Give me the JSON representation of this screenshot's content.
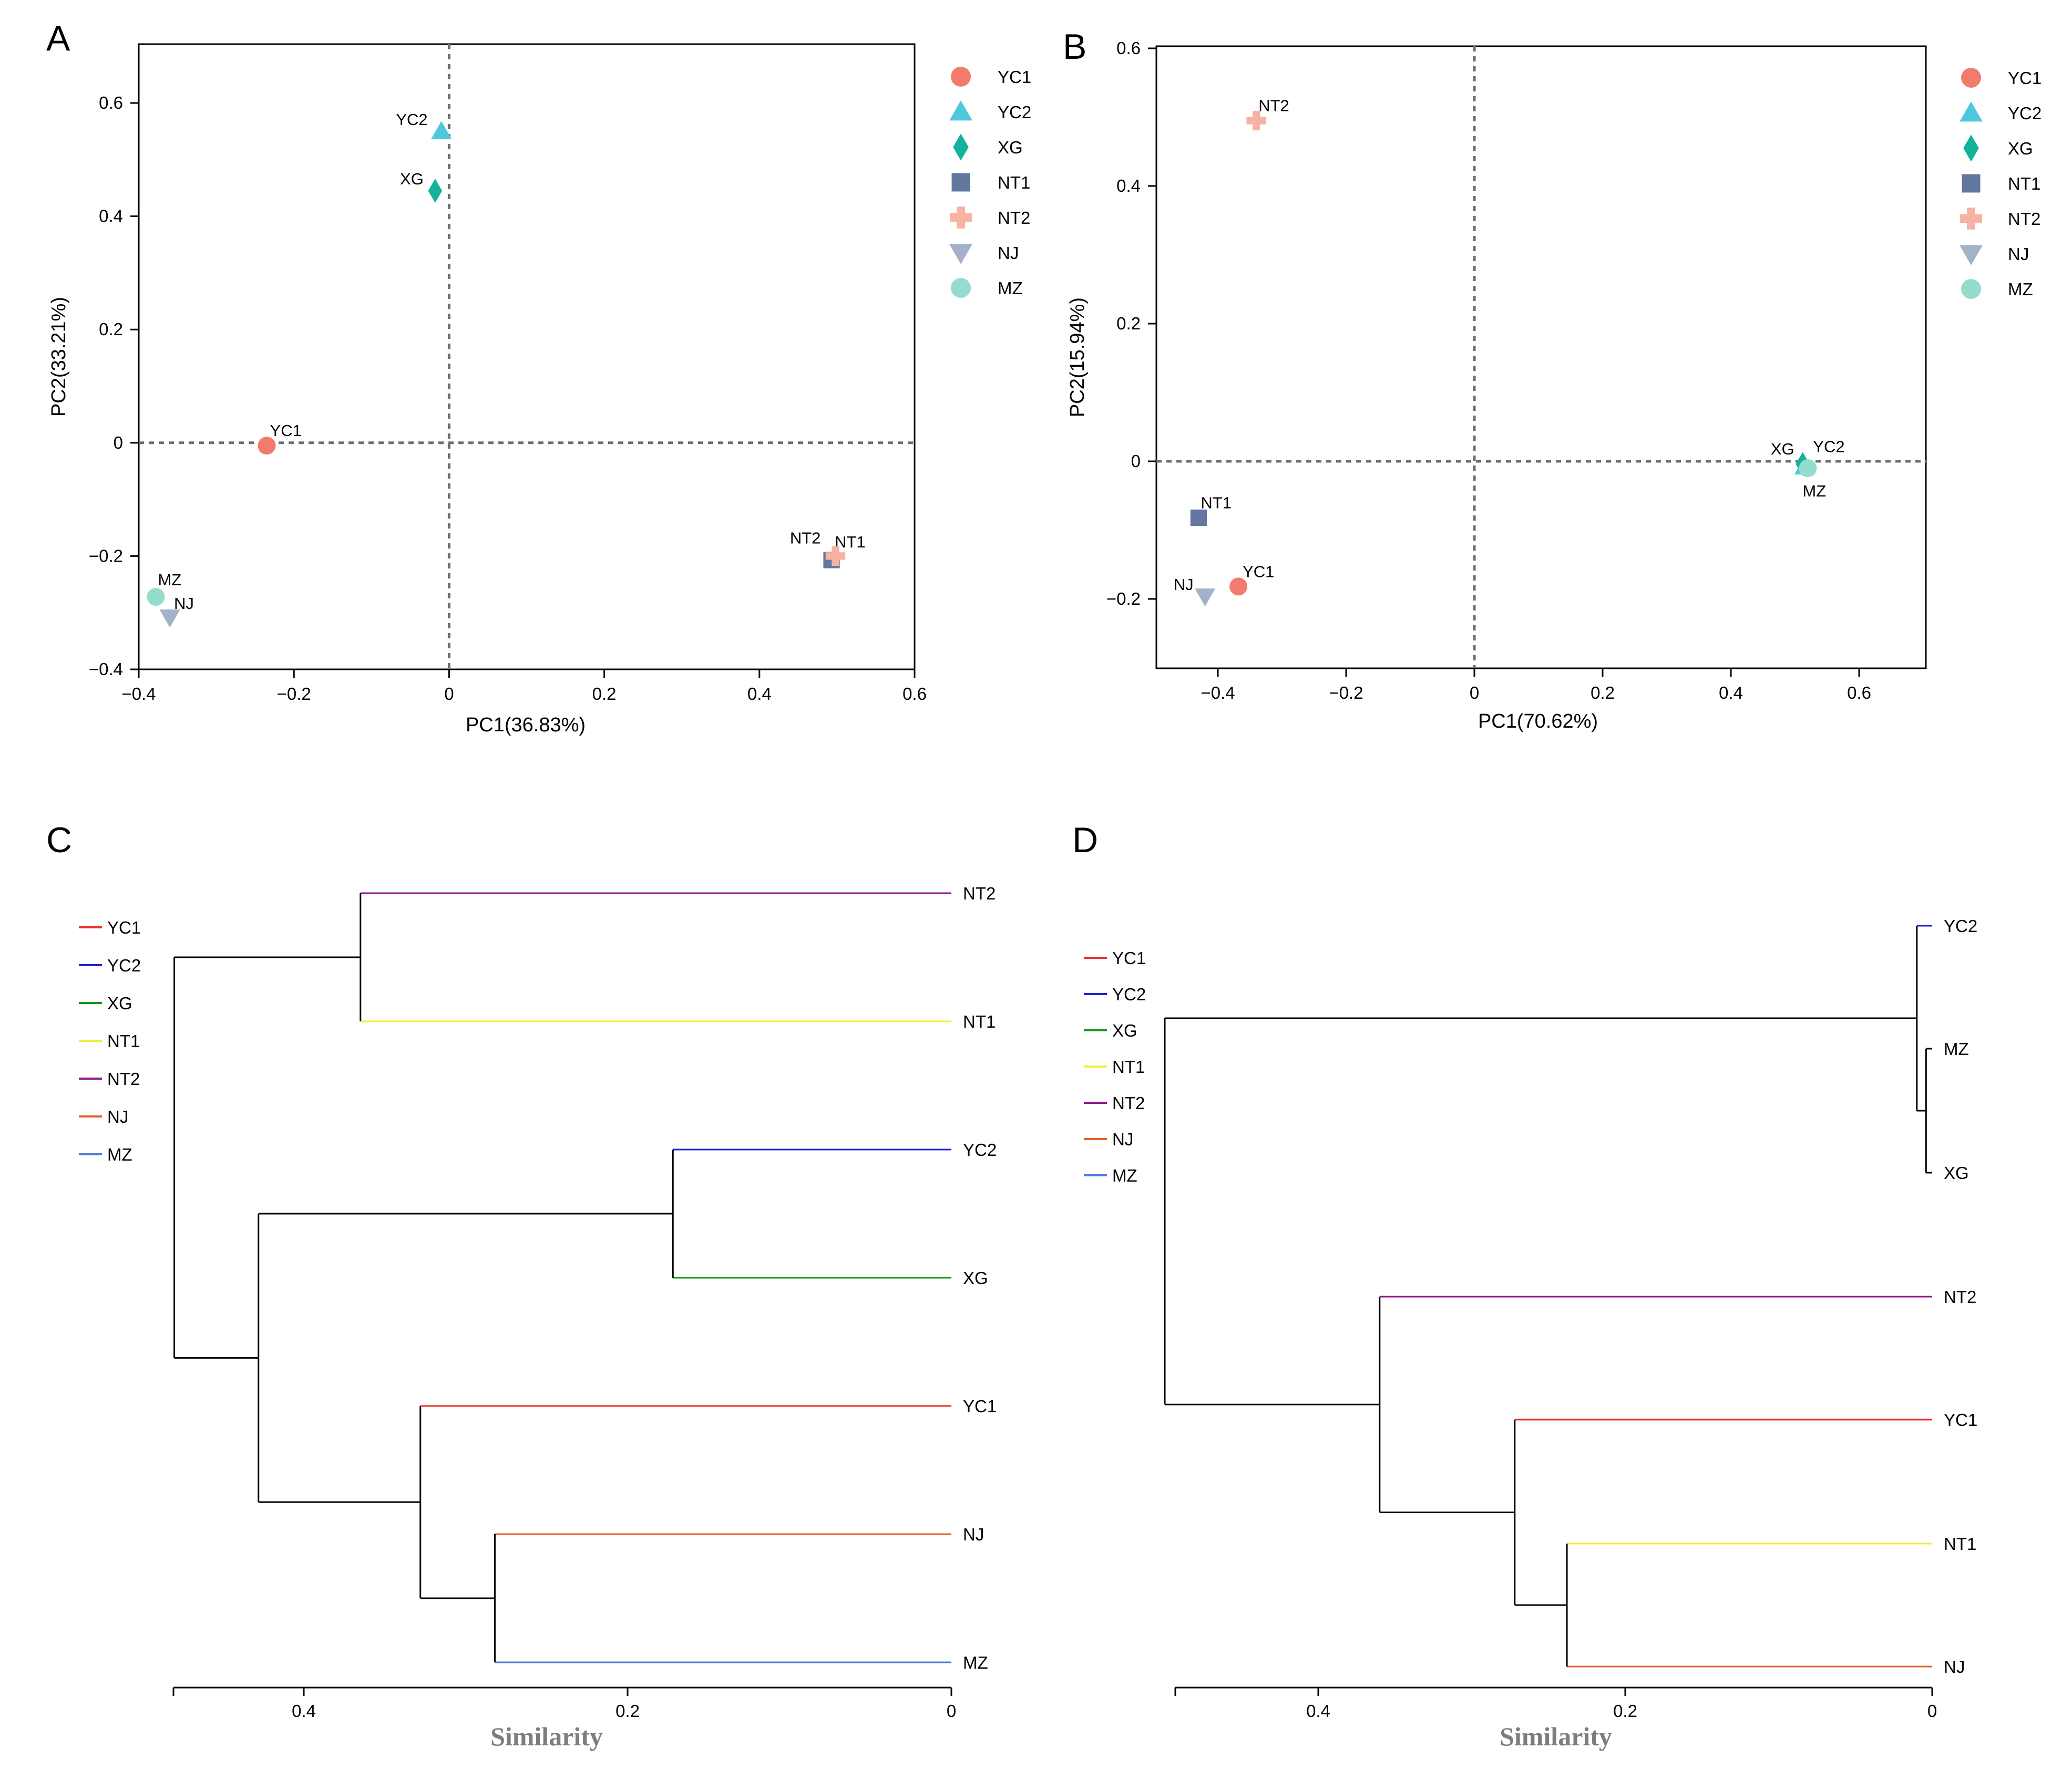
{
  "colors": {
    "YC1": "#f27b6e",
    "YC2": "#4fc8db",
    "XG": "#13b39b",
    "NT1": "#6378a0",
    "NT2": "#f7b2a1",
    "NJ": "#a3b1c9",
    "MZ": "#94dccd",
    "axis": "#000000",
    "refline": "#6e6e6e",
    "tree_black": "#000000",
    "similarity_label": "#7d7d7d"
  },
  "icons": {
    "YC1": "circle",
    "YC2": "triangle-up",
    "XG": "diamond",
    "NT1": "square",
    "NT2": "plus",
    "NJ": "triangle-down",
    "MZ": "circle"
  },
  "chart_data": [
    {
      "panel": "A",
      "type": "scatter",
      "xlabel": "PC1(36.83%)",
      "ylabel": "PC2(33.21%)",
      "xlim": [
        -0.4,
        0.6
      ],
      "ylim": [
        -0.4,
        0.7
      ],
      "xticks": [
        -0.4,
        -0.2,
        0,
        0.2,
        0.4,
        0.6
      ],
      "xtick_labels": [
        "−0.4",
        "−0.2",
        "0",
        "0.2",
        "0.4",
        "0.6"
      ],
      "yticks": [
        -0.4,
        -0.2,
        0,
        0.2,
        0.4,
        0.6
      ],
      "ytick_labels": [
        "−0.4",
        "−0.2",
        "0",
        "0.2",
        "0.4",
        "0.6"
      ],
      "reference_lines": {
        "x": 0,
        "y": 0
      },
      "legend_position": "right",
      "legend": [
        "YC1",
        "YC2",
        "XG",
        "NT1",
        "NT2",
        "NJ",
        "MZ"
      ],
      "points": [
        {
          "label": "YC1",
          "x": -0.235,
          "y": -0.005
        },
        {
          "label": "YC2",
          "x": -0.01,
          "y": 0.55
        },
        {
          "label": "XG",
          "x": -0.018,
          "y": 0.445
        },
        {
          "label": "NT1",
          "x": 0.493,
          "y": -0.207
        },
        {
          "label": "NT2",
          "x": 0.498,
          "y": -0.2
        },
        {
          "label": "NJ",
          "x": -0.36,
          "y": -0.308
        },
        {
          "label": "MZ",
          "x": -0.378,
          "y": -0.272
        }
      ]
    },
    {
      "panel": "B",
      "type": "scatter",
      "xlabel": "PC1(70.62%)",
      "ylabel": "PC2(15.94%)",
      "xlim": [
        -0.5,
        0.7
      ],
      "ylim": [
        -0.3,
        0.6
      ],
      "xticks": [
        -0.4,
        -0.2,
        0,
        0.2,
        0.4,
        0.6
      ],
      "xtick_labels": [
        "−0.4",
        "−0.2",
        "0",
        "0.2",
        "0.4",
        "0.6"
      ],
      "yticks": [
        -0.2,
        0,
        0.2,
        0.4,
        0.6
      ],
      "ytick_labels": [
        "−0.2",
        "0",
        "0.2",
        "0.4",
        "0.6"
      ],
      "reference_lines": {
        "x": 0,
        "y": 0
      },
      "legend_position": "right",
      "legend": [
        "YC1",
        "YC2",
        "XG",
        "NT1",
        "NT2",
        "NJ",
        "MZ"
      ],
      "points": [
        {
          "label": "YC1",
          "x": -0.368,
          "y": -0.182
        },
        {
          "label": "YC2",
          "x": 0.515,
          "y": -0.008
        },
        {
          "label": "XG",
          "x": 0.512,
          "y": -0.004
        },
        {
          "label": "NT1",
          "x": -0.43,
          "y": -0.082
        },
        {
          "label": "NT2",
          "x": -0.34,
          "y": 0.495
        },
        {
          "label": "NJ",
          "x": -0.42,
          "y": -0.196
        },
        {
          "label": "MZ",
          "x": 0.52,
          "y": -0.01
        }
      ]
    },
    {
      "panel": "C",
      "type": "dendrogram",
      "xlabel": "Similarity",
      "xlim": [
        0.48,
        0
      ],
      "xticks": [
        0.4,
        0.2,
        0
      ],
      "xtick_labels": [
        "0.4",
        "0.2",
        "0"
      ],
      "legend_position": "top-left",
      "legend": [
        {
          "label": "YC1",
          "color": "#e8302a"
        },
        {
          "label": "YC2",
          "color": "#2323d3"
        },
        {
          "label": "XG",
          "color": "#16951c"
        },
        {
          "label": "NT1",
          "color": "#f0ef3e"
        },
        {
          "label": "NT2",
          "color": "#8d1889"
        },
        {
          "label": "NJ",
          "color": "#e2612d"
        },
        {
          "label": "MZ",
          "color": "#4a7bd9"
        }
      ],
      "leaves": [
        {
          "label": "NT2",
          "color": "#8d1889",
          "join": 0.365
        },
        {
          "label": "NT1",
          "color": "#f0ef3e",
          "join": 0.365
        },
        {
          "label": "YC2",
          "color": "#2323d3",
          "join": 0.172
        },
        {
          "label": "XG",
          "color": "#16951c",
          "join": 0.172
        },
        {
          "label": "YC1",
          "color": "#e8302a",
          "join": 0.328
        },
        {
          "label": "NJ",
          "color": "#e2612d",
          "join": 0.282
        },
        {
          "label": "MZ",
          "color": "#4a7bd9",
          "join": 0.282
        }
      ],
      "merges": [
        {
          "a": 5,
          "b": 6,
          "h": 0.282
        },
        {
          "a": 4,
          "b": 7,
          "h": 0.328
        },
        {
          "a": 2,
          "b": 3,
          "h": 0.172
        },
        {
          "a": 9,
          "b": 8,
          "h": 0.428
        },
        {
          "a": 0,
          "b": 1,
          "h": 0.365
        },
        {
          "a": 11,
          "b": 10,
          "h": 0.48
        }
      ]
    },
    {
      "panel": "D",
      "type": "dendrogram",
      "xlabel": "Similarity",
      "xlim": [
        0.5,
        0
      ],
      "xticks": [
        0.4,
        0.2,
        0
      ],
      "xtick_labels": [
        "0.4",
        "0.2",
        "0"
      ],
      "legend_position": "top-left",
      "legend": [
        {
          "label": "YC1",
          "color": "#e8302a"
        },
        {
          "label": "YC2",
          "color": "#2323d3"
        },
        {
          "label": "XG",
          "color": "#16951c"
        },
        {
          "label": "NT1",
          "color": "#f0ef3e"
        },
        {
          "label": "NT2",
          "color": "#8d1889"
        },
        {
          "label": "NJ",
          "color": "#e2612d"
        },
        {
          "label": "MZ",
          "color": "#4a7bd9"
        }
      ],
      "leaves": [
        {
          "label": "YC2",
          "color": "#2323d3",
          "join": 0.01
        },
        {
          "label": "MZ",
          "color": "#000000",
          "join": 0.004
        },
        {
          "label": "XG",
          "color": "#000000",
          "join": 0.004
        },
        {
          "label": "NT2",
          "color": "#8d1889",
          "join": 0.36
        },
        {
          "label": "YC1",
          "color": "#e8302a",
          "join": 0.272
        },
        {
          "label": "NT1",
          "color": "#f0ef3e",
          "join": 0.238
        },
        {
          "label": "NJ",
          "color": "#e2612d",
          "join": 0.238
        }
      ],
      "merges": [
        {
          "a": 1,
          "b": 2,
          "h": 0.004
        },
        {
          "a": 0,
          "b": 7,
          "h": 0.01
        },
        {
          "a": 5,
          "b": 6,
          "h": 0.238
        },
        {
          "a": 4,
          "b": 9,
          "h": 0.272
        },
        {
          "a": 3,
          "b": 10,
          "h": 0.36
        },
        {
          "a": 8,
          "b": 11,
          "h": 0.5
        }
      ]
    }
  ],
  "panels": {
    "A": {
      "letter": "A"
    },
    "B": {
      "letter": "B"
    },
    "C": {
      "letter": "C"
    },
    "D": {
      "letter": "D"
    }
  }
}
